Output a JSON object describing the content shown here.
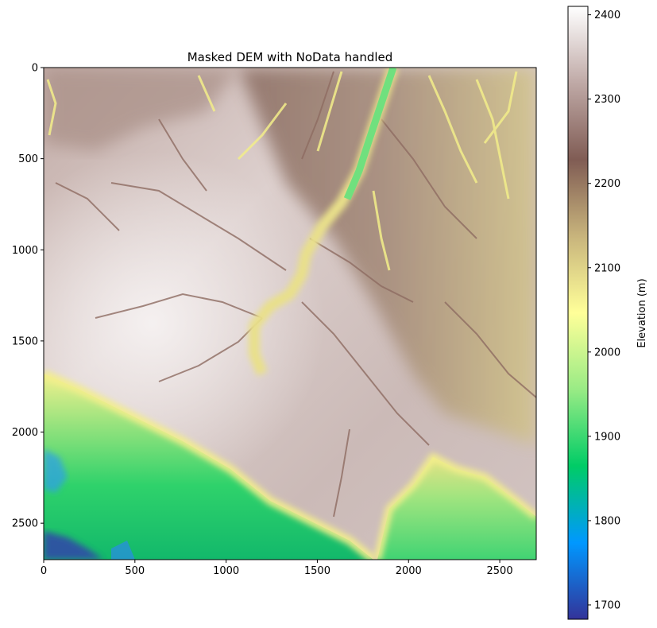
{
  "chart_data": {
    "type": "heatmap",
    "title": "Masked DEM with NoData handled",
    "x": {
      "ticks": [
        0,
        500,
        1000,
        1500,
        2000,
        2500
      ],
      "tick_labels": [
        "0",
        "500",
        "1000",
        "1500",
        "2000",
        "2500"
      ],
      "range": [
        0,
        2700
      ]
    },
    "y": {
      "ticks": [
        0,
        500,
        1000,
        1500,
        2000,
        2500
      ],
      "tick_labels": [
        "0",
        "500",
        "1000",
        "1500",
        "2000",
        "2500"
      ],
      "range": [
        0,
        2700
      ],
      "inverted": true
    },
    "colorbar": {
      "label": "Elevation (m)",
      "ticks": [
        1700,
        1800,
        1900,
        2000,
        2100,
        2200,
        2300,
        2400
      ],
      "tick_labels": [
        "1700",
        "1800",
        "1900",
        "2000",
        "2100",
        "2200",
        "2300",
        "2400"
      ],
      "range": [
        1683,
        2410
      ],
      "colormap": "terrain",
      "colormap_stops": [
        "#333399",
        "#0098ff",
        "#00cc66",
        "#99eb85",
        "#ffff99",
        "#c8b47c",
        "#805c54",
        "#bfa9a6",
        "#ffffff"
      ]
    },
    "grid": false
  }
}
